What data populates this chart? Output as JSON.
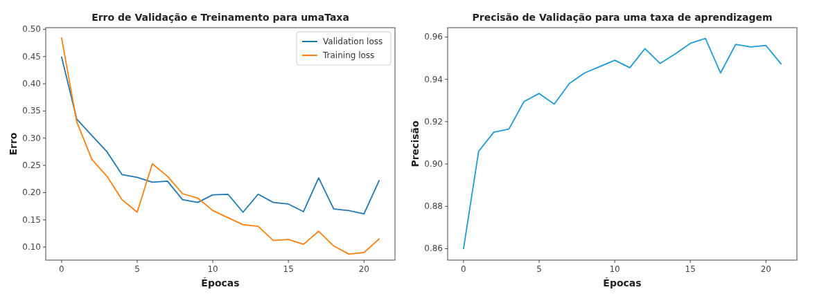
{
  "chart_data": [
    {
      "type": "line",
      "title": "Erro de Validação e Treinamento para umaTaxa",
      "xlabel": "Épocas",
      "ylabel": "Erro",
      "x": [
        0,
        1,
        2,
        3,
        4,
        5,
        6,
        7,
        8,
        9,
        10,
        11,
        12,
        13,
        14,
        15,
        16,
        17,
        18,
        19,
        20,
        21
      ],
      "xlim": [
        -1.05,
        22.05
      ],
      "xticks": [
        0,
        5,
        10,
        15,
        20
      ],
      "ylim": [
        0.076,
        0.503
      ],
      "yticks": [
        {
          "value": 0.1,
          "label": "0.10"
        },
        {
          "value": 0.15,
          "label": "0.15"
        },
        {
          "value": 0.2,
          "label": "0.20"
        },
        {
          "value": 0.25,
          "label": "0.25"
        },
        {
          "value": 0.3,
          "label": "0.30"
        },
        {
          "value": 0.35,
          "label": "0.35"
        },
        {
          "value": 0.4,
          "label": "0.40"
        },
        {
          "value": 0.45,
          "label": "0.45"
        },
        {
          "value": 0.5,
          "label": "0.50"
        }
      ],
      "legend": "top right",
      "grid": false,
      "series": [
        {
          "name": "Validation loss",
          "color": "#1f77b4",
          "values": [
            0.449,
            0.335,
            0.305,
            0.275,
            0.233,
            0.228,
            0.219,
            0.221,
            0.187,
            0.182,
            0.196,
            0.197,
            0.164,
            0.197,
            0.182,
            0.179,
            0.165,
            0.227,
            0.17,
            0.167,
            0.161,
            0.222
          ]
        },
        {
          "name": "Training loss",
          "color": "#ff7f0e",
          "values": [
            0.484,
            0.33,
            0.261,
            0.23,
            0.187,
            0.164,
            0.253,
            0.23,
            0.198,
            0.19,
            0.167,
            0.154,
            0.141,
            0.138,
            0.112,
            0.114,
            0.105,
            0.129,
            0.102,
            0.087,
            0.09,
            0.115
          ]
        }
      ]
    },
    {
      "type": "line",
      "title": "Precisão de Validação para uma taxa de aprendizagem",
      "xlabel": "Épocas",
      "ylabel": "Precisão",
      "x": [
        0,
        1,
        2,
        3,
        4,
        5,
        6,
        7,
        8,
        9,
        10,
        11,
        12,
        13,
        14,
        15,
        16,
        17,
        18,
        19,
        20,
        21
      ],
      "xlim": [
        -1.05,
        22.05
      ],
      "xticks": [
        0,
        5,
        10,
        15,
        20
      ],
      "ylim": [
        0.8546,
        0.9644
      ],
      "yticks": [
        {
          "value": 0.86,
          "label": "0.86"
        },
        {
          "value": 0.88,
          "label": "0.88"
        },
        {
          "value": 0.9,
          "label": "0.90"
        },
        {
          "value": 0.92,
          "label": "0.92"
        },
        {
          "value": 0.94,
          "label": "0.94"
        },
        {
          "value": 0.96,
          "label": "0.96"
        }
      ],
      "legend": false,
      "grid": false,
      "series": [
        {
          "color": "#1a9bd7",
          "values": [
            0.86,
            0.906,
            0.915,
            0.9165,
            0.9295,
            0.9333,
            0.9283,
            0.938,
            0.943,
            0.946,
            0.949,
            0.9455,
            0.9545,
            0.9475,
            0.952,
            0.957,
            0.9593,
            0.943,
            0.9565,
            0.9553,
            0.956,
            0.9473
          ]
        }
      ]
    }
  ]
}
